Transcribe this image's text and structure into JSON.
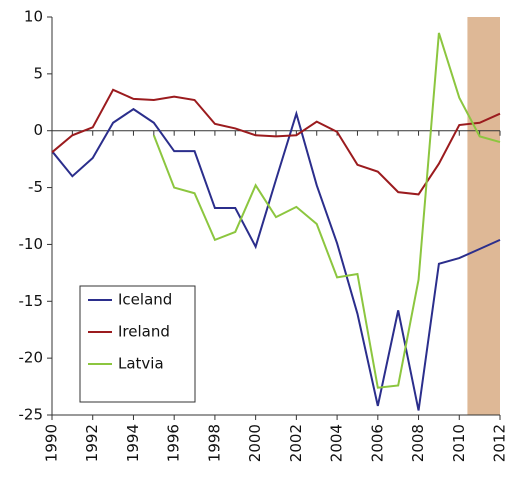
{
  "chart_data": {
    "type": "line",
    "x": [
      1990,
      1991,
      1992,
      1993,
      1994,
      1995,
      1996,
      1997,
      1998,
      1999,
      2000,
      2001,
      2002,
      2003,
      2004,
      2005,
      2006,
      2007,
      2008,
      2009,
      2010,
      2011,
      2012
    ],
    "series": [
      {
        "name": "Iceland",
        "color": "#2b2e8c",
        "values": [
          -1.8,
          -4.0,
          -2.4,
          0.7,
          1.9,
          0.7,
          -1.8,
          -1.8,
          -6.8,
          -6.8,
          -10.2,
          -4.3,
          1.5,
          -4.8,
          -9.9,
          -16.1,
          -24.2,
          -15.8,
          -24.6,
          -11.7,
          -11.2,
          -10.4,
          -9.6
        ]
      },
      {
        "name": "Ireland",
        "color": "#9b1b1e",
        "values": [
          -1.9,
          -0.4,
          0.3,
          3.6,
          2.8,
          2.7,
          3.0,
          2.7,
          0.6,
          0.2,
          -0.4,
          -0.5,
          -0.4,
          0.8,
          -0.1,
          -3.0,
          -3.6,
          -5.4,
          -5.6,
          -2.9,
          0.5,
          0.7,
          1.5
        ]
      },
      {
        "name": "Latvia",
        "color": "#8cc63f",
        "values": [
          null,
          null,
          null,
          null,
          null,
          -0.4,
          -5.0,
          -5.5,
          -9.6,
          -8.9,
          -4.8,
          -7.6,
          -6.7,
          -8.2,
          -12.9,
          -12.6,
          -22.6,
          -22.4,
          -13.1,
          8.6,
          2.9,
          -0.5,
          -1.0
        ]
      }
    ],
    "xlim": [
      1990,
      2012
    ],
    "xticks": [
      1990,
      1992,
      1994,
      1996,
      1998,
      2000,
      2002,
      2004,
      2006,
      2008,
      2010,
      2012
    ],
    "ylim": [
      -25,
      10
    ],
    "yticks": [
      -25,
      -20,
      -15,
      -10,
      -5,
      0,
      5,
      10
    ],
    "shaded_range": [
      2010.4,
      2012
    ],
    "shade_color": "#deb896",
    "legend": "lower-left"
  }
}
